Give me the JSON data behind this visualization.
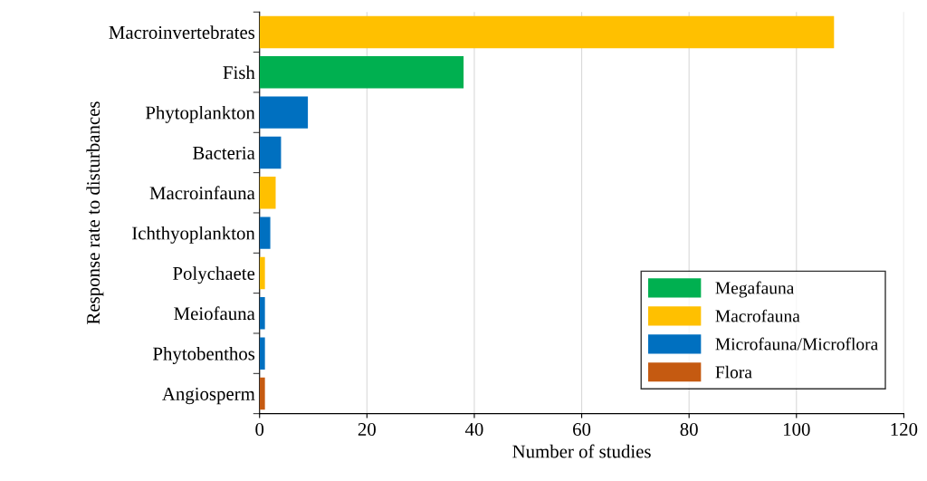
{
  "chart_data": {
    "type": "bar",
    "orientation": "horizontal",
    "xlabel": "Number of studies",
    "ylabel": "Response rate to disturbances",
    "categories": [
      "Macroinvertebrates",
      "Fish",
      "Phytoplankton",
      "Bacteria",
      "Macroinfauna",
      "Ichthyoplankton",
      "Polychaete",
      "Meiofauna",
      "Phytobenthos",
      "Angiosperm"
    ],
    "series": [
      {
        "name": "Megafauna",
        "color": "#00b050",
        "values": [
          null,
          38,
          null,
          null,
          null,
          null,
          null,
          null,
          null,
          null
        ]
      },
      {
        "name": "Macrofauna",
        "color": "#ffc000",
        "values": [
          107,
          null,
          null,
          null,
          3,
          null,
          1,
          null,
          null,
          null
        ]
      },
      {
        "name": "Microfauna/Microflora",
        "color": "#0070c0",
        "values": [
          null,
          null,
          9,
          4,
          null,
          2,
          null,
          1,
          1,
          null
        ]
      },
      {
        "name": "Flora",
        "color": "#c55a11",
        "values": [
          null,
          null,
          null,
          null,
          null,
          null,
          null,
          null,
          null,
          1
        ]
      }
    ],
    "xlim": [
      0,
      120
    ],
    "xticks": [
      0,
      20,
      40,
      60,
      80,
      100,
      120
    ],
    "grid": "x",
    "legend": "bottom right"
  }
}
